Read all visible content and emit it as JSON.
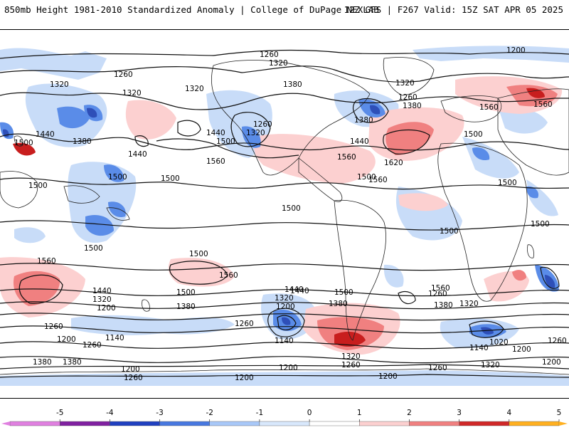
{
  "header": {
    "left": "850mb Height 1981-2010 Standardized Anomaly | College of DuPage NEXLAB",
    "right": "12Z GFS | F267 Valid: 15Z SAT APR 05 2025"
  },
  "colorbar": {
    "ticks": [
      "-5",
      "-4",
      "-3",
      "-2",
      "-1",
      "0",
      "1",
      "2",
      "3",
      "4",
      "5"
    ],
    "colors": [
      "#e080e0",
      "#8020a0",
      "#2040c0",
      "#4878e0",
      "#a8c8f8",
      "#d8e8fc",
      "#ffffff",
      "#fcd0d0",
      "#f08080",
      "#d02828",
      "#ffb020"
    ]
  },
  "map": {
    "contours": [
      {
        "label": "1260",
        "value": 1260
      },
      {
        "label": "1320",
        "value": 1320
      },
      {
        "label": "1380",
        "value": 1380
      },
      {
        "label": "1440",
        "value": 1440
      },
      {
        "label": "1500",
        "value": 1500
      },
      {
        "label": "1560",
        "value": 1560
      },
      {
        "label": "1620",
        "value": 1620
      },
      {
        "label": "1200",
        "value": 1200
      },
      {
        "label": "1140",
        "value": 1140
      },
      {
        "label": "1020",
        "value": 1020
      }
    ],
    "labels": [
      "1260",
      "1320",
      "1200",
      "1260",
      "1320",
      "1320",
      "1320",
      "1380",
      "1260",
      "1380",
      "1320",
      "1440",
      "1500",
      "1380",
      "1440",
      "1500",
      "1440",
      "1500",
      "1320",
      "1260",
      "1560",
      "1380",
      "1440",
      "1500",
      "1560",
      "1560",
      "1620",
      "1500",
      "1560",
      "1560",
      "1500",
      "1500",
      "1500",
      "1500",
      "1500",
      "1500",
      "1500",
      "1500",
      "1560",
      "1560",
      "1440",
      "1320",
      "1200",
      "1260",
      "1140",
      "1200",
      "1260",
      "1380",
      "1500",
      "1440",
      "1320",
      "1200",
      "1140",
      "1260",
      "1380",
      "1380",
      "1200",
      "1260",
      "1440",
      "1500",
      "1560",
      "1380",
      "1320",
      "1320",
      "1260",
      "1140",
      "1200",
      "1260",
      "1020",
      "1200",
      "1260",
      "1200",
      "1200",
      "1260",
      "1320",
      "1200",
      "1380"
    ]
  }
}
